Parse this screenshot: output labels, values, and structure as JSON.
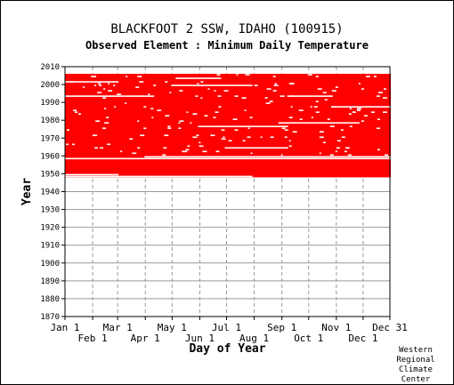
{
  "title": "BLACKFOOT 2 SSW, IDAHO   (100915)",
  "subtitle": "Observed Element : Minimum Daily Temperature",
  "credit": [
    "Western",
    "Regional",
    "Climate",
    "Center"
  ],
  "chart_data": {
    "type": "heatmap",
    "xlabel": "Day of Year",
    "ylabel": "Year",
    "xlim": [
      1,
      365
    ],
    "ylim": [
      1870,
      2010
    ],
    "y_ticks": [
      1870,
      1880,
      1890,
      1900,
      1910,
      1920,
      1930,
      1940,
      1950,
      1960,
      1970,
      1980,
      1990,
      2000,
      2010
    ],
    "x_ticks": [
      {
        "label": "Jan 1",
        "day": 1,
        "row": 0
      },
      {
        "label": "Feb 1",
        "day": 32,
        "row": 1
      },
      {
        "label": "Mar 1",
        "day": 60,
        "row": 0
      },
      {
        "label": "Apr 1",
        "day": 91,
        "row": 1
      },
      {
        "label": "May 1",
        "day": 121,
        "row": 0
      },
      {
        "label": "Jun 1",
        "day": 152,
        "row": 1
      },
      {
        "label": "Jul 1",
        "day": 182,
        "row": 0
      },
      {
        "label": "Aug 1",
        "day": 213,
        "row": 1
      },
      {
        "label": "Sep 1",
        "day": 244,
        "row": 0
      },
      {
        "label": "Oct 1",
        "day": 274,
        "row": 1
      },
      {
        "label": "Nov 1",
        "day": 305,
        "row": 0
      },
      {
        "label": "Dec 1",
        "day": 335,
        "row": 1
      },
      {
        "label": "Dec 31",
        "day": 365,
        "row": 0
      }
    ],
    "grid": true,
    "data_color": "#ff0000",
    "record_start": {
      "year": 1948,
      "day": 1
    },
    "record_end": {
      "year": 2005,
      "day": 365
    },
    "approx_gaps": [
      {
        "year": 1948,
        "from_day": 1,
        "to_day": 210
      },
      {
        "year": 1949,
        "from_day": 1,
        "to_day": 60
      },
      {
        "year": 1958,
        "from_day": 1,
        "to_day": 365
      },
      {
        "year": 1959,
        "from_day": 90,
        "to_day": 365
      },
      {
        "year": 1964,
        "from_day": 180,
        "to_day": 250
      },
      {
        "year": 1976,
        "from_day": 150,
        "to_day": 250
      },
      {
        "year": 1978,
        "from_day": 240,
        "to_day": 330
      },
      {
        "year": 1987,
        "from_day": 300,
        "to_day": 365
      },
      {
        "year": 1993,
        "from_day": 1,
        "to_day": 100
      },
      {
        "year": 1993,
        "from_day": 250,
        "to_day": 300
      },
      {
        "year": 1999,
        "from_day": 120,
        "to_day": 210
      },
      {
        "year": 2001,
        "from_day": 1,
        "to_day": 60
      },
      {
        "year": 2003,
        "from_day": 125,
        "to_day": 175
      }
    ]
  }
}
